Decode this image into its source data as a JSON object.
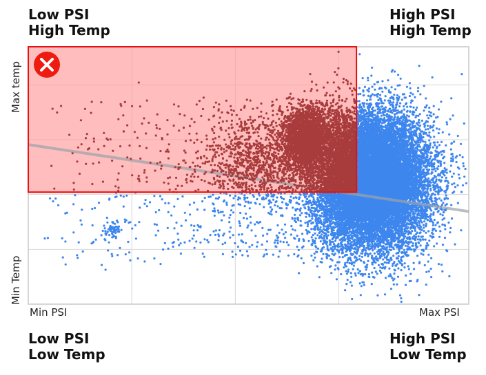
{
  "quadrants": {
    "top_left": {
      "line1": "Low PSI",
      "line2": "High Temp"
    },
    "top_right": {
      "line1": "High PSI",
      "line2": "High Temp"
    },
    "bottom_left": {
      "line1": "Low PSI",
      "line2": "Low Temp"
    },
    "bottom_right": {
      "line1": "High PSI",
      "line2": "Low Temp"
    }
  },
  "axes": {
    "x_min_label": "Min PSI",
    "x_max_label": "Max PSI",
    "y_max_label": "Max temp",
    "y_min_label": "Min Temp"
  },
  "colors": {
    "points": "#3d86ee",
    "points_in_zone": "#a83b3b",
    "zone_fill": "#ff9a9a",
    "zone_border": "#e01515",
    "trend": "#9aa3ad",
    "grid": "#d6d6d6",
    "reject_icon": "#ee1b10"
  },
  "icons": {
    "zone_marker": "reject-x-icon"
  },
  "chart_data": {
    "type": "scatter",
    "title": "",
    "xlabel": "",
    "ylabel": "",
    "xlim": [
      0,
      1
    ],
    "ylim": [
      0,
      1
    ],
    "grid": true,
    "description_units": "normalized (0 = min, 1 = max)",
    "clusters": [
      {
        "center_x": 0.78,
        "center_y": 0.48,
        "spread_x": 0.065,
        "spread_y": 0.13,
        "points": 17000
      },
      {
        "center_x": 0.63,
        "center_y": 0.64,
        "spread_x": 0.025,
        "spread_y": 0.06,
        "points": 2500
      },
      {
        "center_x": 0.52,
        "center_y": 0.55,
        "spread_x": 0.06,
        "spread_y": 0.08,
        "points": 900
      }
    ],
    "sparse_points": 900,
    "highlight_zone": {
      "x0": 0.0,
      "x1": 0.745,
      "y0": 0.435,
      "y1": 1.0,
      "label": "rejected"
    },
    "trend_line": {
      "x0": 0.0,
      "y0": 0.62,
      "x1": 1.0,
      "y1": 0.36
    }
  }
}
